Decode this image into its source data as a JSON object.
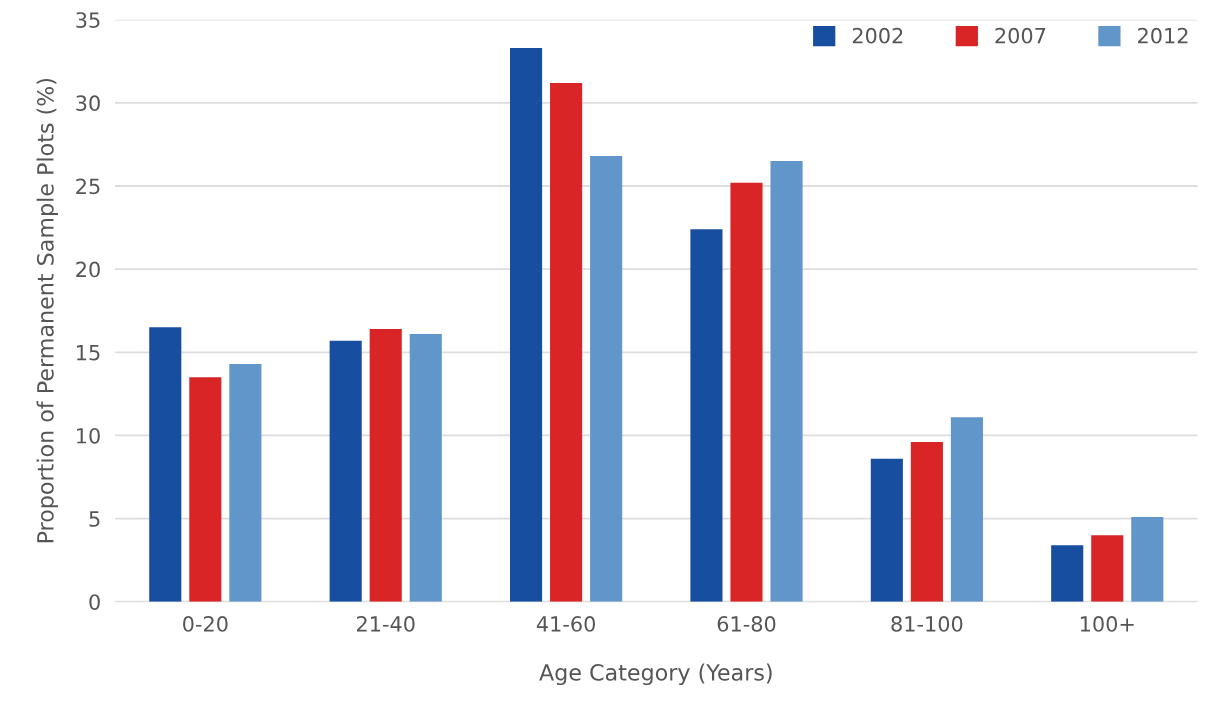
{
  "chart_data": {
    "type": "bar",
    "xlabel": "Age Category (Years)",
    "ylabel": "Proportion of Permanent Sample Plots (%)",
    "categories": [
      "0-20",
      "21-40",
      "41-60",
      "61-80",
      "81-100",
      "100+"
    ],
    "series": [
      {
        "name": "2002",
        "color": "#174ea0",
        "values": [
          16.5,
          15.7,
          33.3,
          22.4,
          8.6,
          3.4
        ]
      },
      {
        "name": "2007",
        "color": "#d92526",
        "values": [
          13.5,
          16.4,
          31.2,
          25.2,
          9.6,
          4.0
        ]
      },
      {
        "name": "2012",
        "color": "#6096c9",
        "values": [
          14.3,
          16.1,
          26.8,
          26.5,
          11.1,
          5.1
        ]
      }
    ],
    "ylim": [
      0,
      35
    ],
    "yticks": [
      0,
      5,
      10,
      15,
      20,
      25,
      30,
      35
    ],
    "grid": "y",
    "legend": "top right"
  }
}
